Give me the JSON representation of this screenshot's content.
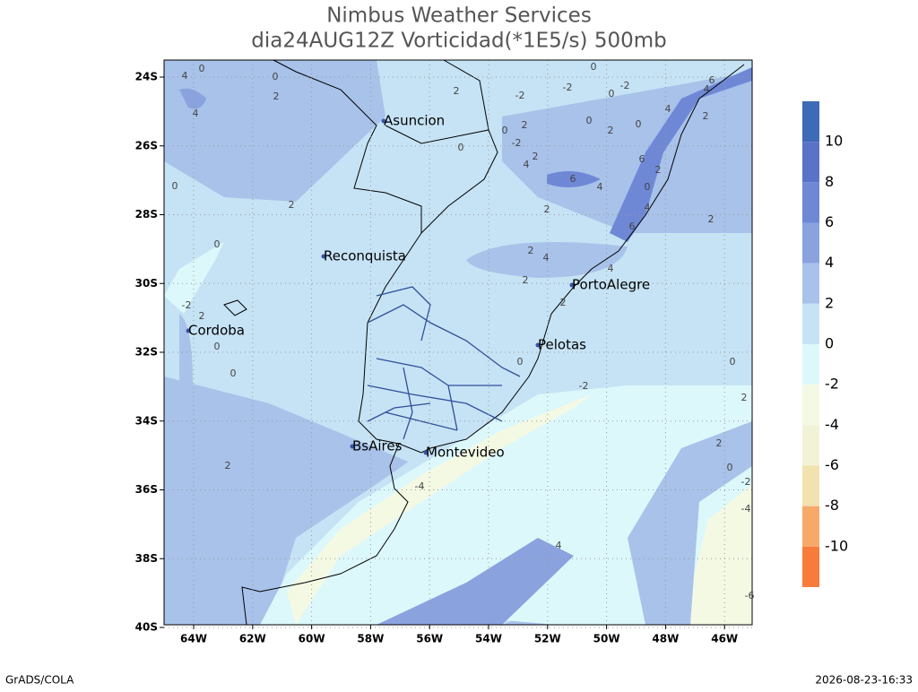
{
  "title": "Nimbus Weather Services",
  "subtitle": "dia24AUG12Z Vorticidad(*1E5/s) 500mb",
  "lat_ticks": [
    "24S",
    "26S",
    "28S",
    "30S",
    "32S",
    "34S",
    "36S",
    "38S",
    "40S"
  ],
  "lon_ticks": [
    "64W",
    "62W",
    "60W",
    "58W",
    "56W",
    "54W",
    "52W",
    "50W",
    "48W",
    "46W"
  ],
  "cities": [
    "Asuncion",
    "Reconquista",
    "Cordoba",
    "PortoAlegre",
    "Pelotas",
    "BsAires",
    "Montevideo"
  ],
  "colorbar": {
    "levels": [
      10,
      8,
      6,
      4,
      2,
      0,
      -2,
      -4,
      -6,
      -8,
      -10
    ],
    "colors": [
      "#3d6bb5",
      "#5a72c8",
      "#6f88d6",
      "#8aa2de",
      "#a8c2ea",
      "#c6e3f5",
      "#ddf8fb",
      "#f4f9e4",
      "#f2f2d6",
      "#f1e2b0",
      "#f7a96a",
      "#f77c3b"
    ]
  },
  "contour_labels": [
    0,
    4,
    4,
    0,
    2,
    2,
    -2,
    -2,
    0,
    0,
    -2,
    6,
    4,
    4,
    2,
    0,
    0,
    2,
    2,
    0,
    -2,
    0,
    2,
    4,
    6,
    4,
    6,
    2,
    0,
    4,
    6,
    2,
    2,
    2,
    0,
    0,
    2,
    4,
    4,
    2,
    2,
    -2,
    2,
    0,
    0,
    0,
    -2,
    0,
    2,
    2,
    0,
    -2,
    -4,
    2,
    -4,
    4,
    -6
  ],
  "footer_left": "GrADS/COLA",
  "footer_right": "2026-08-23-16:33"
}
